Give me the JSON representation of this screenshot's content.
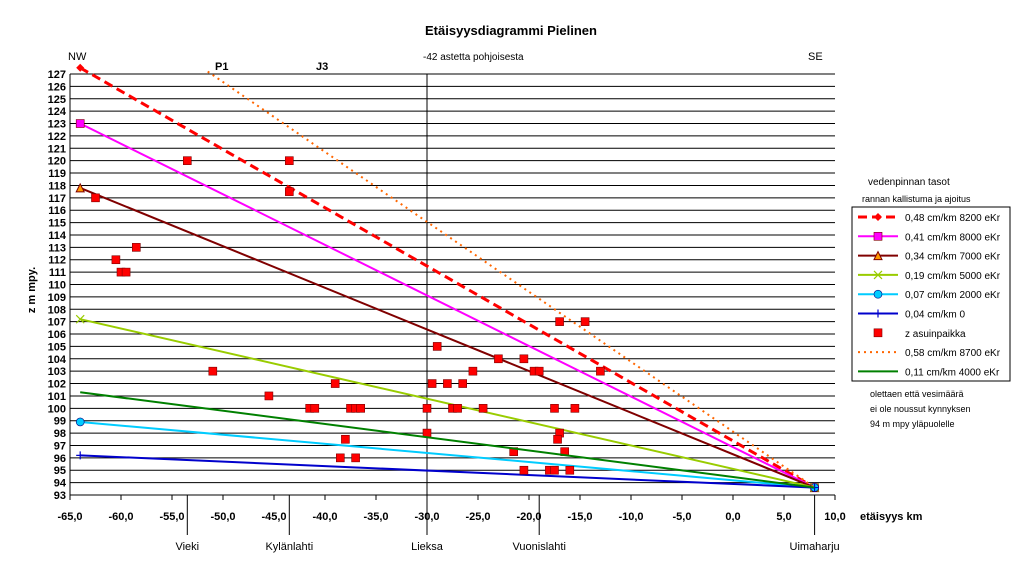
{
  "chart_data": {
    "type": "line",
    "title": "Etäisyysdiagrammi Pielinen",
    "xlabel": "etäisyys km",
    "ylabel": "z m mpy.",
    "xlim": [
      -65,
      10
    ],
    "ylim": [
      93,
      127
    ],
    "xticks": [
      "-65,0",
      "-60,0",
      "-55,0",
      "-50,0",
      "-45,0",
      "-40,0",
      "-35,0",
      "-30,0",
      "-25,0",
      "-20,0",
      "-15,0",
      "-10,0",
      "-5,0",
      "0,0",
      "5,0",
      "10,0"
    ],
    "yticks": [
      "93",
      "94",
      "95",
      "96",
      "97",
      "98",
      "99",
      "100",
      "101",
      "102",
      "103",
      "104",
      "105",
      "106",
      "107",
      "108",
      "109",
      "110",
      "111",
      "112",
      "113",
      "114",
      "115",
      "116",
      "117",
      "118",
      "119",
      "120",
      "121",
      "122",
      "123",
      "124",
      "125",
      "126",
      "127"
    ],
    "grid": "horizontal",
    "annotations": {
      "nw": "NW",
      "se": "SE",
      "direction": "-42 astetta pohjoisesta",
      "p1": "P1",
      "j3": "J3",
      "note_line1": "olettaen että vesimäärä",
      "note_line2": "ei ole noussut kynnyksen",
      "note_line3": "94 m mpy yläpuolelle"
    },
    "places": [
      {
        "name": "Vieki",
        "x": -53.5
      },
      {
        "name": "Kylänlahti",
        "x": -43.5
      },
      {
        "name": "Lieksa",
        "x": -30
      },
      {
        "name": "Vuonislahti",
        "x": -19
      },
      {
        "name": "Uimaharju",
        "x": 8
      }
    ],
    "legend": {
      "title": "vedenpinnan tasot",
      "subtitle": "rannan kallistuma ja ajoitus",
      "position": "right"
    },
    "series": [
      {
        "name": "0,48 cm/km 8200 eKr",
        "color": "#ff0000",
        "style": "dashed",
        "marker": "diamond",
        "points": [
          [
            -64,
            127.5
          ],
          [
            8,
            93.6
          ]
        ]
      },
      {
        "name": "0,41 cm/km 8000 eKr",
        "color": "#ff00ff",
        "style": "solid",
        "marker": "square",
        "points": [
          [
            -64,
            123
          ],
          [
            8,
            93.6
          ]
        ]
      },
      {
        "name": "0,34 cm/km 7000 eKr",
        "color": "#800000",
        "style": "solid",
        "marker": "triangle",
        "points": [
          [
            -64,
            117.8
          ],
          [
            8,
            93.6
          ]
        ]
      },
      {
        "name": "0,19 cm/km 5000 eKr",
        "color": "#99cc00",
        "style": "solid",
        "marker": "x",
        "points": [
          [
            -64,
            107.2
          ],
          [
            8,
            93.6
          ]
        ]
      },
      {
        "name": "0,07 cm/km 2000 eKr",
        "color": "#00ccff",
        "style": "solid",
        "marker": "circle",
        "points": [
          [
            -64,
            98.9
          ],
          [
            8,
            93.6
          ]
        ]
      },
      {
        "name": "0,04 cm/km 0",
        "color": "#0000cc",
        "style": "solid",
        "marker": "plus",
        "points": [
          [
            -64,
            96.2
          ],
          [
            8,
            93.6
          ]
        ]
      },
      {
        "name": "z asuinpaikka",
        "color": "#ff0000",
        "style": "none",
        "marker": "square",
        "points": [
          [
            -53.5,
            120
          ],
          [
            -43.5,
            120
          ],
          [
            -43.5,
            117.5
          ],
          [
            -62.5,
            117
          ],
          [
            -58.5,
            113
          ],
          [
            -60.5,
            112
          ],
          [
            -60,
            111
          ],
          [
            -59.5,
            111
          ],
          [
            -17,
            107
          ],
          [
            -14.5,
            107
          ],
          [
            -29,
            105
          ],
          [
            -23,
            104
          ],
          [
            -20.5,
            104
          ],
          [
            -19.5,
            103
          ],
          [
            -19,
            103
          ],
          [
            -25.5,
            103
          ],
          [
            -51,
            103
          ],
          [
            -13,
            103
          ],
          [
            -29.5,
            102
          ],
          [
            -28,
            102
          ],
          [
            -26.5,
            102
          ],
          [
            -39,
            102
          ],
          [
            -45.5,
            101
          ],
          [
            -41.5,
            100
          ],
          [
            -41,
            100
          ],
          [
            -37.5,
            100
          ],
          [
            -37,
            100
          ],
          [
            -36.5,
            100
          ],
          [
            -30,
            100
          ],
          [
            -27.5,
            100
          ],
          [
            -27,
            100
          ],
          [
            -24.5,
            100
          ],
          [
            -17.5,
            100
          ],
          [
            -15.5,
            100
          ],
          [
            -30,
            98
          ],
          [
            -17,
            98
          ],
          [
            -17.2,
            97.5
          ],
          [
            -38,
            97.5
          ],
          [
            -21.5,
            96.5
          ],
          [
            -16.5,
            96.5
          ],
          [
            -38.5,
            96
          ],
          [
            -37,
            96
          ],
          [
            -20.5,
            95
          ],
          [
            -18,
            95
          ],
          [
            -17.5,
            95
          ],
          [
            -16,
            95
          ]
        ]
      },
      {
        "name": "0,58 cm/km 8700 eKr",
        "color": "#ff6600",
        "style": "dotted",
        "marker": "none",
        "points": [
          [
            -51.5,
            127.2
          ],
          [
            8,
            93.6
          ]
        ]
      },
      {
        "name": "0,11 cm/km 4000 eKr",
        "color": "#008000",
        "style": "solid",
        "marker": "none",
        "points": [
          [
            -64,
            101.3
          ],
          [
            8,
            93.6
          ]
        ]
      }
    ]
  }
}
